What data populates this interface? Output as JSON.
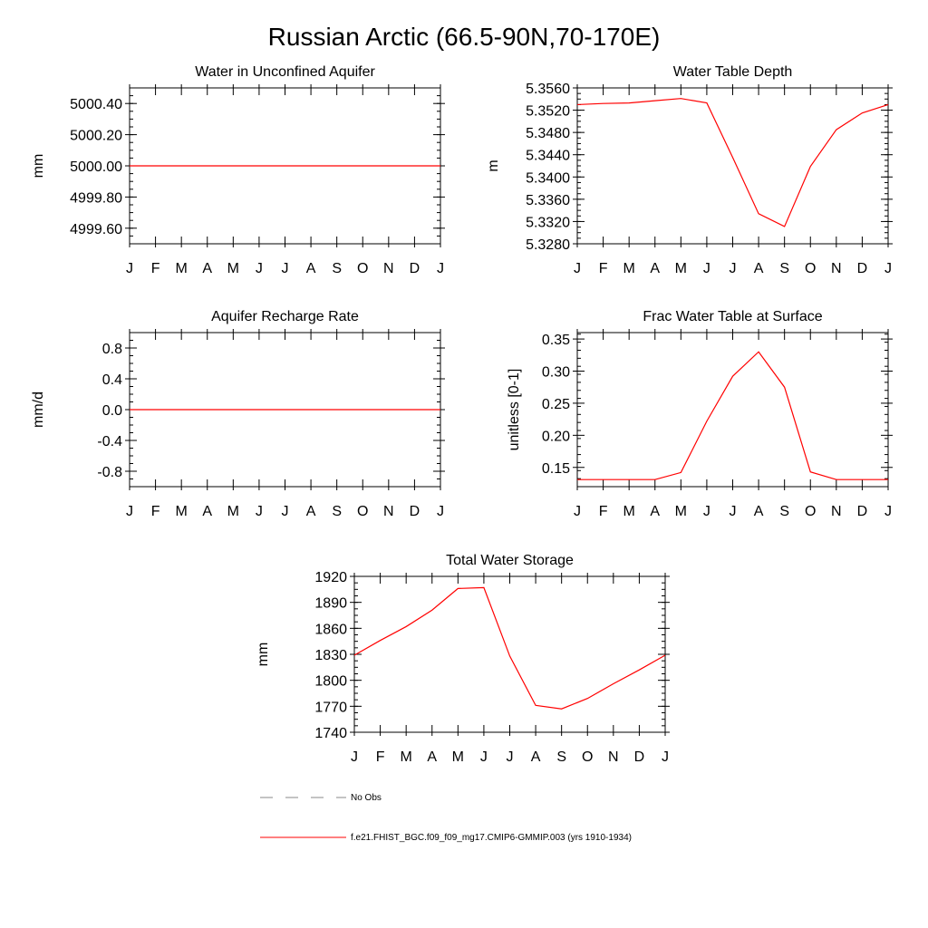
{
  "figure": {
    "title": "Russian Arctic (66.5-90N,70-170E)"
  },
  "colors": {
    "model": "#ff0000",
    "obs": "#888888",
    "axis": "#000000"
  },
  "legend": {
    "entries": [
      {
        "label": "No Obs",
        "style": "dashed",
        "color": "#888888"
      },
      {
        "label": "f.e21.FHIST_BGC.f09_f09_mg17.CMIP6-GMMIP.003 (yrs 1910-1934)",
        "style": "solid",
        "color": "#ff0000"
      }
    ]
  },
  "chart_data": [
    {
      "type": "line",
      "title": "Water in Unconfined Aquifer",
      "ylabel": "mm",
      "categories": [
        "J",
        "F",
        "M",
        "A",
        "M",
        "J",
        "J",
        "A",
        "S",
        "O",
        "N",
        "D",
        "J"
      ],
      "ylim": [
        4999.5,
        5000.5
      ],
      "yticks": [
        4999.6,
        4999.8,
        5000.0,
        5000.2,
        5000.4
      ],
      "ytick_labels": [
        "4999.60",
        "4999.80",
        "5000.00",
        "5000.20",
        "5000.40"
      ],
      "series": [
        {
          "values": [
            5000,
            5000,
            5000,
            5000,
            5000,
            5000,
            5000,
            5000,
            5000,
            5000,
            5000,
            5000,
            5000
          ]
        }
      ]
    },
    {
      "type": "line",
      "title": "Water Table Depth",
      "ylabel": "m",
      "categories": [
        "J",
        "F",
        "M",
        "A",
        "M",
        "J",
        "J",
        "A",
        "S",
        "O",
        "N",
        "D",
        "J"
      ],
      "ylim": [
        5.328,
        5.356
      ],
      "yticks": [
        5.328,
        5.332,
        5.336,
        5.34,
        5.344,
        5.348,
        5.352,
        5.356
      ],
      "ytick_labels": [
        "5.3280",
        "5.3320",
        "5.3360",
        "5.3400",
        "5.3440",
        "5.3480",
        "5.3520",
        "5.3560"
      ],
      "series": [
        {
          "values": [
            5.353,
            5.3532,
            5.3533,
            5.3537,
            5.3541,
            5.3533,
            5.3435,
            5.3334,
            5.3311,
            5.3419,
            5.3485,
            5.3515,
            5.353
          ]
        }
      ]
    },
    {
      "type": "line",
      "title": "Aquifer Recharge Rate",
      "ylabel": "mm/d",
      "categories": [
        "J",
        "F",
        "M",
        "A",
        "M",
        "J",
        "J",
        "A",
        "S",
        "O",
        "N",
        "D",
        "J"
      ],
      "ylim": [
        -1.0,
        1.0
      ],
      "yticks": [
        -0.8,
        -0.4,
        0.0,
        0.4,
        0.8
      ],
      "ytick_labels": [
        "-0.8",
        "-0.4",
        "0.0",
        "0.4",
        "0.8"
      ],
      "series": [
        {
          "values": [
            0,
            0,
            0,
            0,
            0,
            0,
            0,
            0,
            0,
            0,
            0,
            0,
            0
          ]
        }
      ]
    },
    {
      "type": "line",
      "title": "Frac Water Table at Surface",
      "ylabel": "unitless [0-1]",
      "categories": [
        "J",
        "F",
        "M",
        "A",
        "M",
        "J",
        "J",
        "A",
        "S",
        "O",
        "N",
        "D",
        "J"
      ],
      "ylim": [
        0.12,
        0.36
      ],
      "yticks": [
        0.15,
        0.2,
        0.25,
        0.3,
        0.35
      ],
      "ytick_labels": [
        "0.15",
        "0.20",
        "0.25",
        "0.30",
        "0.35"
      ],
      "series": [
        {
          "values": [
            0.131,
            0.131,
            0.131,
            0.131,
            0.142,
            0.222,
            0.292,
            0.33,
            0.275,
            0.143,
            0.131,
            0.131,
            0.131
          ]
        }
      ]
    },
    {
      "type": "line",
      "title": "Total Water Storage",
      "ylabel": "mm",
      "categories": [
        "J",
        "F",
        "M",
        "A",
        "M",
        "J",
        "J",
        "A",
        "S",
        "O",
        "N",
        "D",
        "J"
      ],
      "ylim": [
        1740,
        1920
      ],
      "yticks": [
        1740,
        1770,
        1800,
        1830,
        1860,
        1890,
        1920
      ],
      "ytick_labels": [
        "1740",
        "1770",
        "1800",
        "1830",
        "1860",
        "1890",
        "1920"
      ],
      "series": [
        {
          "values": [
            1829,
            1846,
            1862,
            1881,
            1906,
            1907,
            1828,
            1771,
            1767,
            1779,
            1796,
            1812,
            1829
          ]
        }
      ]
    }
  ]
}
